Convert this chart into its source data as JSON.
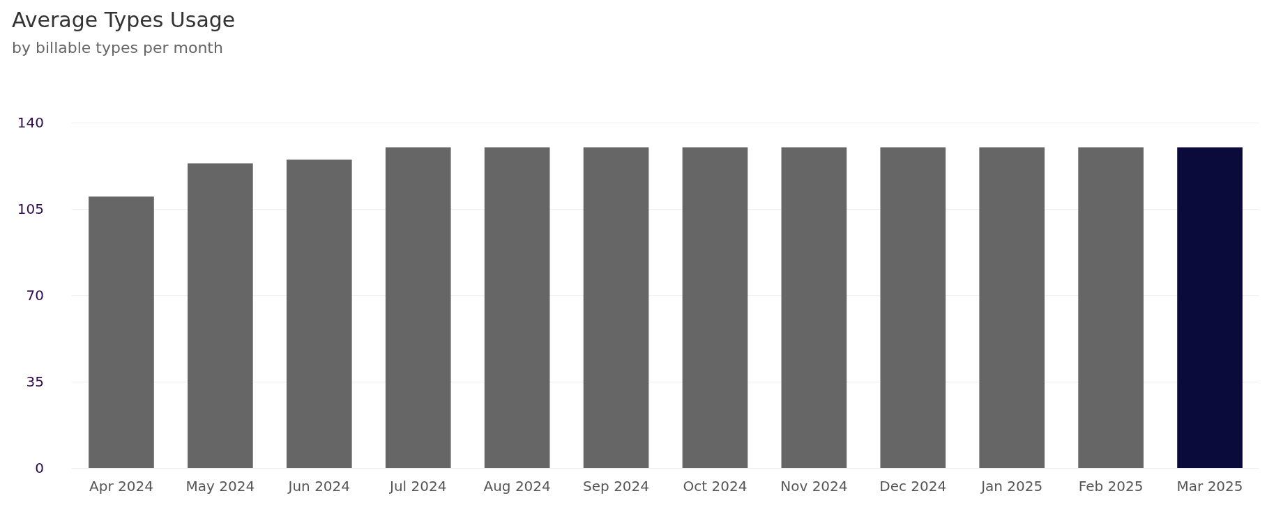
{
  "chart_data": {
    "type": "bar",
    "title": "Average Types Usage",
    "subtitle": "by billable types per month",
    "categories": [
      "Apr 2024",
      "May 2024",
      "Jun 2024",
      "Jul 2024",
      "Aug 2024",
      "Sep 2024",
      "Oct 2024",
      "Nov 2024",
      "Dec 2024",
      "Jan 2025",
      "Feb 2025",
      "Mar 2025"
    ],
    "values": [
      110,
      123.5,
      125,
      130,
      130,
      130,
      130,
      130,
      130,
      130,
      130,
      130
    ],
    "colors": [
      "#666666",
      "#666666",
      "#666666",
      "#666666",
      "#666666",
      "#666666",
      "#666666",
      "#666666",
      "#666666",
      "#666666",
      "#666666",
      "#0b0b3b"
    ],
    "ylim": [
      0,
      140
    ],
    "yticks": [
      0,
      35,
      70,
      105,
      140
    ],
    "grid": "y"
  }
}
